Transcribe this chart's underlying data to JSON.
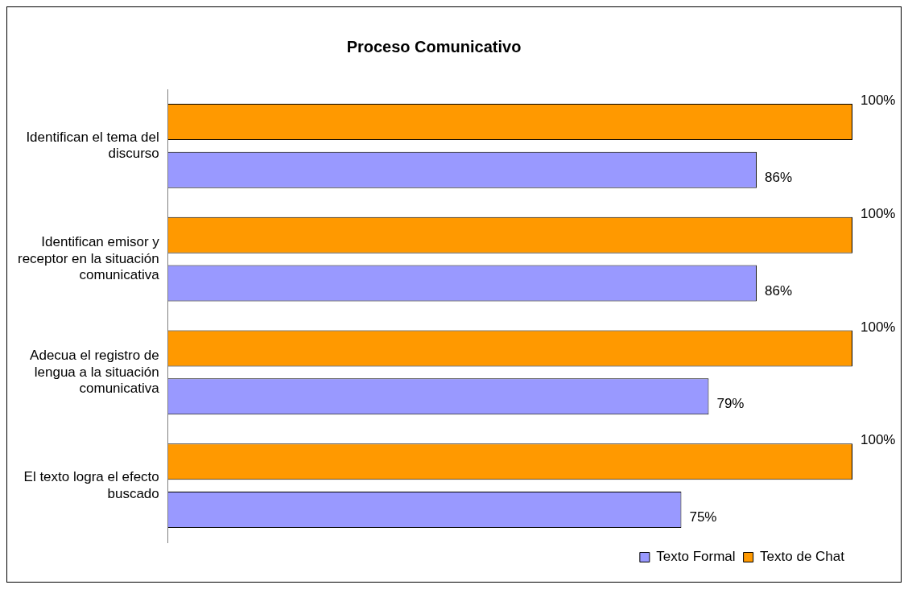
{
  "chart_data": {
    "type": "bar",
    "orientation": "horizontal",
    "title": "Proceso Comunicativo",
    "categories": [
      "Identifican el tema del discurso",
      "Identifican emisor y receptor en la situación comunicativa",
      "Adecua el registro de lengua a la situación comunicativa",
      "El texto logra el efecto buscado"
    ],
    "series": [
      {
        "name": "Texto Formal",
        "color": "#9999ff",
        "values": [
          86,
          86,
          79,
          75
        ],
        "value_labels": [
          "86%",
          "86%",
          "79%",
          "75%"
        ]
      },
      {
        "name": "Texto de Chat",
        "color": "#ff9900",
        "values": [
          100,
          100,
          100,
          100
        ],
        "value_labels": [
          "100%",
          "100%",
          "100%",
          "100%"
        ]
      }
    ],
    "legend": "bottom right"
  }
}
